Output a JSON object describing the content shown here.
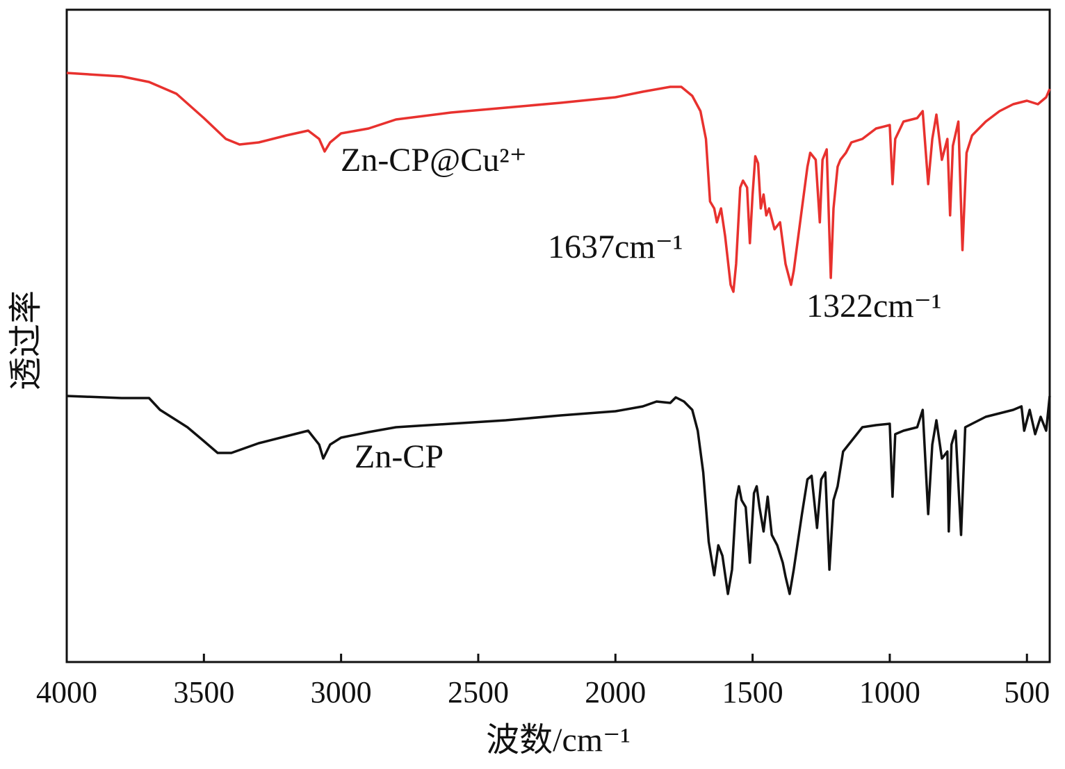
{
  "chart_data": {
    "type": "line",
    "xlabel": "波数/cm⁻¹",
    "ylabel": "透过率",
    "xlim": [
      4000,
      417
    ],
    "ylim": [
      0,
      939
    ],
    "xticks": [
      4000,
      3500,
      3000,
      2500,
      2000,
      1500,
      1000,
      500
    ],
    "annotations": [
      "1637cm⁻¹",
      "1322cm⁻¹"
    ],
    "series": [
      {
        "name": "Zn-CP@Cu²⁺",
        "color": "#e8312e",
        "x": [
          4000,
          3800,
          3700,
          3600,
          3500,
          3420,
          3370,
          3300,
          3200,
          3120,
          3080,
          3060,
          3040,
          3000,
          2900,
          2800,
          2600,
          2400,
          2200,
          2000,
          1900,
          1800,
          1760,
          1720,
          1690,
          1670,
          1655,
          1640,
          1630,
          1615,
          1600,
          1580,
          1570,
          1560,
          1545,
          1535,
          1520,
          1510,
          1500,
          1490,
          1480,
          1470,
          1460,
          1450,
          1440,
          1420,
          1400,
          1380,
          1360,
          1350,
          1320,
          1300,
          1290,
          1270,
          1255,
          1245,
          1230,
          1215,
          1205,
          1190,
          1180,
          1160,
          1140,
          1100,
          1050,
          1000,
          990,
          980,
          950,
          900,
          880,
          860,
          845,
          830,
          810,
          790,
          780,
          770,
          750,
          735,
          720,
          700,
          650,
          600,
          550,
          500,
          460,
          430,
          417
        ],
        "values": [
          848,
          843,
          835,
          818,
          783,
          753,
          745,
          748,
          758,
          765,
          753,
          735,
          748,
          761,
          768,
          781,
          791,
          798,
          805,
          813,
          821,
          828,
          828,
          815,
          793,
          753,
          663,
          653,
          633,
          653,
          613,
          543,
          533,
          573,
          683,
          693,
          683,
          603,
          673,
          728,
          718,
          653,
          673,
          643,
          653,
          623,
          633,
          573,
          543,
          563,
          653,
          713,
          733,
          723,
          633,
          723,
          738,
          553,
          653,
          713,
          723,
          733,
          748,
          753,
          768,
          773,
          688,
          753,
          778,
          783,
          793,
          688,
          753,
          788,
          723,
          753,
          643,
          743,
          778,
          593,
          733,
          758,
          778,
          793,
          803,
          808,
          803,
          813,
          825
        ]
      },
      {
        "name": "Zn-CP",
        "color": "#111111",
        "x": [
          4000,
          3800,
          3700,
          3660,
          3620,
          3560,
          3500,
          3450,
          3400,
          3300,
          3200,
          3120,
          3080,
          3065,
          3040,
          3000,
          2900,
          2800,
          2600,
          2400,
          2200,
          2000,
          1900,
          1850,
          1800,
          1780,
          1750,
          1720,
          1700,
          1680,
          1660,
          1640,
          1625,
          1610,
          1590,
          1575,
          1560,
          1550,
          1540,
          1525,
          1510,
          1495,
          1485,
          1475,
          1460,
          1445,
          1430,
          1410,
          1390,
          1380,
          1365,
          1350,
          1320,
          1300,
          1285,
          1265,
          1250,
          1235,
          1220,
          1205,
          1190,
          1170,
          1150,
          1120,
          1100,
          1050,
          1000,
          990,
          980,
          950,
          900,
          880,
          860,
          845,
          830,
          810,
          790,
          785,
          775,
          760,
          740,
          725,
          700,
          650,
          600,
          550,
          520,
          510,
          490,
          470,
          450,
          430,
          417
        ],
        "values": [
          383,
          380,
          380,
          363,
          353,
          338,
          318,
          301,
          301,
          315,
          325,
          333,
          313,
          293,
          313,
          323,
          331,
          338,
          343,
          348,
          355,
          361,
          368,
          375,
          373,
          381,
          375,
          363,
          333,
          273,
          173,
          125,
          168,
          153,
          98,
          133,
          233,
          253,
          233,
          223,
          143,
          243,
          253,
          223,
          188,
          238,
          183,
          168,
          143,
          123,
          98,
          133,
          213,
          263,
          268,
          193,
          263,
          273,
          133,
          233,
          253,
          303,
          313,
          328,
          338,
          341,
          343,
          238,
          328,
          333,
          338,
          363,
          213,
          313,
          348,
          293,
          303,
          188,
          313,
          333,
          183,
          338,
          343,
          353,
          358,
          363,
          368,
          333,
          363,
          328,
          353,
          333,
          383
        ]
      }
    ]
  }
}
